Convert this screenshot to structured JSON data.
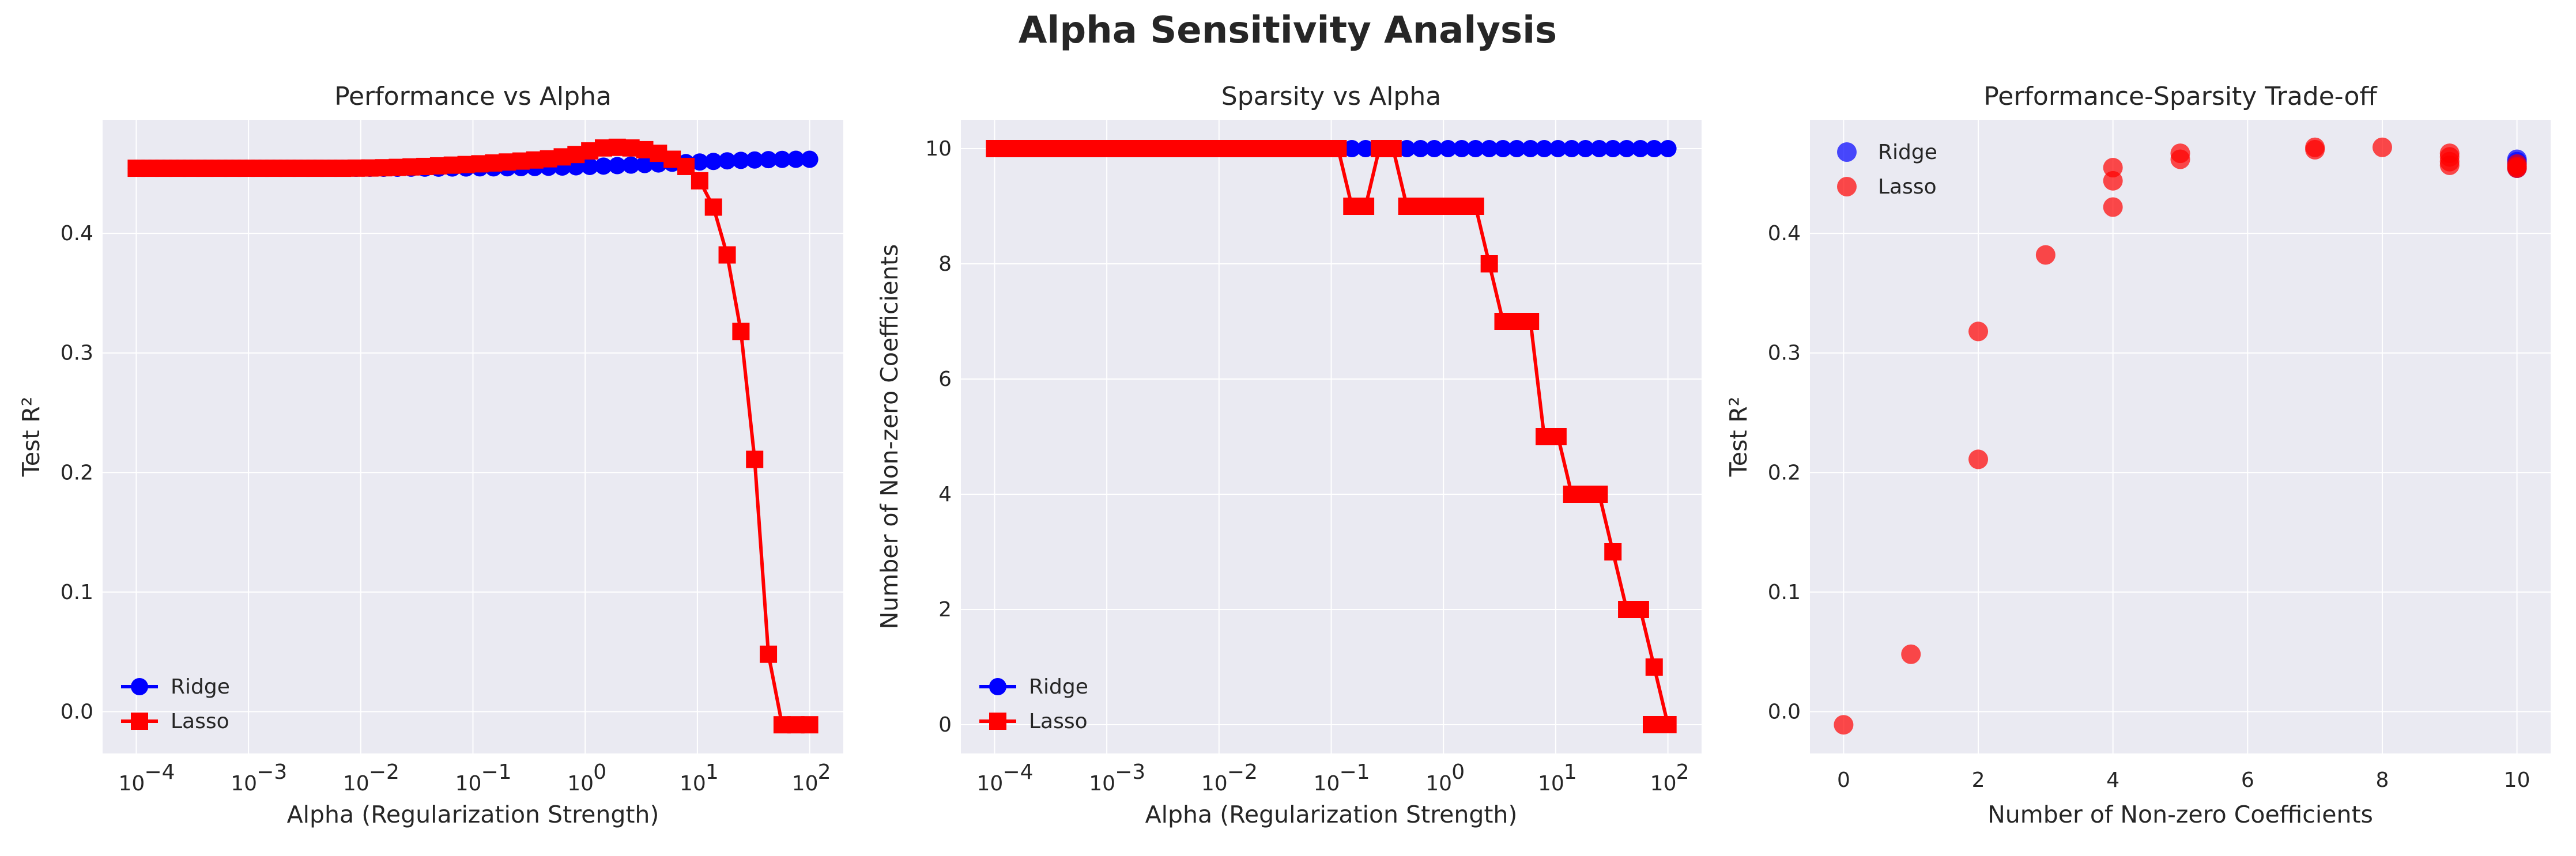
{
  "figure": {
    "suptitle": "Alpha Sensitivity Analysis"
  },
  "colors": {
    "ridge": "#0000ff",
    "lasso": "#ff0000",
    "axes_bg": "#eaeaf2",
    "grid": "#ffffff"
  },
  "chart_data": [
    {
      "type": "line",
      "title": "Performance vs Alpha",
      "xlabel": "Alpha (Regularization Strength)",
      "ylabel": "Test R²",
      "xscale": "log",
      "xlim": [
        0.0001,
        100
      ],
      "ylim": [
        -0.035,
        0.495
      ],
      "x_ticks": [
        0.0001,
        0.001,
        0.01,
        0.1,
        1,
        10,
        100
      ],
      "x_tick_labels": [
        {
          "base": "10",
          "exp": "−4"
        },
        {
          "base": "10",
          "exp": "−3"
        },
        {
          "base": "10",
          "exp": "−2"
        },
        {
          "base": "10",
          "exp": "−1"
        },
        {
          "base": "10",
          "exp": "0"
        },
        {
          "base": "10",
          "exp": "1"
        },
        {
          "base": "10",
          "exp": "2"
        }
      ],
      "y_ticks": [
        0.0,
        0.1,
        0.2,
        0.3,
        0.4
      ],
      "y_tick_labels": [
        "0.0",
        "0.1",
        "0.2",
        "0.3",
        "0.4"
      ],
      "grid": true,
      "legend_position": "lower-left",
      "n_points": 50,
      "series": [
        {
          "name": "Ridge",
          "marker": "circle",
          "color": "#0000ff",
          "y": [
            0.4545,
            0.4545,
            0.4545,
            0.4545,
            0.4545,
            0.4545,
            0.4545,
            0.4545,
            0.4545,
            0.4545,
            0.4545,
            0.4545,
            0.4545,
            0.4545,
            0.4545,
            0.4545,
            0.4545,
            0.4545,
            0.4545,
            0.4545,
            0.4546,
            0.4546,
            0.4546,
            0.4547,
            0.4547,
            0.4548,
            0.4548,
            0.4549,
            0.455,
            0.4551,
            0.4553,
            0.4555,
            0.4557,
            0.456,
            0.4563,
            0.4567,
            0.4571,
            0.4576,
            0.4581,
            0.4587,
            0.4592,
            0.4597,
            0.4602,
            0.4607,
            0.4611,
            0.4614,
            0.4617,
            0.4619,
            0.462,
            0.462
          ]
        },
        {
          "name": "Lasso",
          "marker": "square",
          "color": "#ff0000",
          "y": [
            0.4545,
            0.4545,
            0.4545,
            0.4545,
            0.4545,
            0.4545,
            0.4545,
            0.4545,
            0.4545,
            0.4545,
            0.4545,
            0.4545,
            0.4545,
            0.4545,
            0.4545,
            0.4545,
            0.4546,
            0.4547,
            0.4549,
            0.4552,
            0.4556,
            0.456,
            0.4565,
            0.4571,
            0.4576,
            0.4582,
            0.4589,
            0.4597,
            0.4605,
            0.4614,
            0.4624,
            0.464,
            0.466,
            0.469,
            0.4715,
            0.472,
            0.4715,
            0.47,
            0.467,
            0.462,
            0.456,
            0.444,
            0.422,
            0.382,
            0.318,
            0.211,
            0.048,
            -0.011,
            -0.011,
            -0.011
          ]
        }
      ]
    },
    {
      "type": "line",
      "title": "Sparsity vs Alpha",
      "xlabel": "Alpha (Regularization Strength)",
      "ylabel": "Number of Non-zero Coefficients",
      "xscale": "log",
      "xlim": [
        0.0001,
        100
      ],
      "ylim": [
        -0.5,
        10.5
      ],
      "x_ticks": [
        0.0001,
        0.001,
        0.01,
        0.1,
        1,
        10,
        100
      ],
      "x_tick_labels": [
        {
          "base": "10",
          "exp": "−4"
        },
        {
          "base": "10",
          "exp": "−3"
        },
        {
          "base": "10",
          "exp": "−2"
        },
        {
          "base": "10",
          "exp": "−1"
        },
        {
          "base": "10",
          "exp": "0"
        },
        {
          "base": "10",
          "exp": "1"
        },
        {
          "base": "10",
          "exp": "2"
        }
      ],
      "y_ticks": [
        0,
        2,
        4,
        6,
        8,
        10
      ],
      "y_tick_labels": [
        "0",
        "2",
        "4",
        "6",
        "8",
        "10"
      ],
      "grid": true,
      "legend_position": "lower-left",
      "n_points": 50,
      "series": [
        {
          "name": "Ridge",
          "marker": "circle",
          "color": "#0000ff",
          "y": [
            10,
            10,
            10,
            10,
            10,
            10,
            10,
            10,
            10,
            10,
            10,
            10,
            10,
            10,
            10,
            10,
            10,
            10,
            10,
            10,
            10,
            10,
            10,
            10,
            10,
            10,
            10,
            10,
            10,
            10,
            10,
            10,
            10,
            10,
            10,
            10,
            10,
            10,
            10,
            10,
            10,
            10,
            10,
            10,
            10,
            10,
            10,
            10,
            10,
            10
          ]
        },
        {
          "name": "Lasso",
          "marker": "square",
          "color": "#ff0000",
          "y": [
            10,
            10,
            10,
            10,
            10,
            10,
            10,
            10,
            10,
            10,
            10,
            10,
            10,
            10,
            10,
            10,
            10,
            10,
            10,
            10,
            10,
            10,
            10,
            10,
            10,
            10,
            9,
            9,
            10,
            10,
            9,
            9,
            9,
            9,
            9,
            9,
            8,
            7,
            7,
            7,
            5,
            5,
            4,
            4,
            4,
            3,
            2,
            2,
            1,
            0
          ]
        }
      ],
      "lasso_tail": [
        0,
        0,
        0
      ]
    },
    {
      "type": "scatter",
      "title": "Performance-Sparsity Trade-off",
      "xlabel": "Number of Non-zero Coefficients",
      "ylabel": "Test R²",
      "xlim": [
        -0.5,
        10.5
      ],
      "ylim": [
        -0.035,
        0.495
      ],
      "x_ticks": [
        0,
        2,
        4,
        6,
        8,
        10
      ],
      "x_tick_labels": [
        "0",
        "2",
        "4",
        "6",
        "8",
        "10"
      ],
      "y_ticks": [
        0.0,
        0.1,
        0.2,
        0.3,
        0.4
      ],
      "y_tick_labels": [
        "0.0",
        "0.1",
        "0.2",
        "0.3",
        "0.4"
      ],
      "grid": true,
      "legend_position": "upper-left",
      "series": [
        {
          "name": "Ridge",
          "color": "#0000ff",
          "points": [
            [
              10,
              0.4545
            ],
            [
              10,
              0.456
            ],
            [
              10,
              0.458
            ],
            [
              10,
              0.46
            ],
            [
              10,
              0.462
            ]
          ]
        },
        {
          "name": "Lasso",
          "color": "#ff0000",
          "points": [
            [
              0,
              -0.011
            ],
            [
              1,
              0.048
            ],
            [
              2,
              0.318
            ],
            [
              2,
              0.211
            ],
            [
              3,
              0.382
            ],
            [
              4,
              0.455
            ],
            [
              4,
              0.444
            ],
            [
              4,
              0.422
            ],
            [
              5,
              0.467
            ],
            [
              5,
              0.462
            ],
            [
              7,
              0.472
            ],
            [
              7,
              0.47
            ],
            [
              8,
              0.472
            ],
            [
              9,
              0.467
            ],
            [
              9,
              0.464
            ],
            [
              9,
              0.46
            ],
            [
              9,
              0.457
            ],
            [
              10,
              0.455
            ],
            [
              10,
              0.4545
            ],
            [
              10,
              0.456
            ],
            [
              10,
              0.458
            ]
          ]
        }
      ]
    }
  ]
}
